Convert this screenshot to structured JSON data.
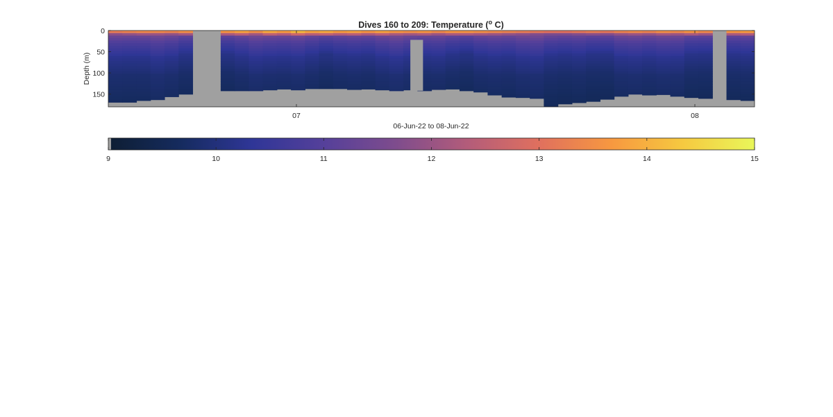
{
  "chart_data": {
    "type": "heatmap",
    "title": "Dives 160 to 209: Temperature (",
    "title_superscript": "o",
    "title_suffix": " C)",
    "xlabel": "06-Jun-22 to 08-Jun-22",
    "ylabel": "Depth (m)",
    "y_reversed": true,
    "ylim": [
      0,
      180
    ],
    "yticks": [
      0,
      50,
      100,
      150
    ],
    "xtick_labels": [
      "07",
      "08"
    ],
    "dives": [
      160,
      209
    ],
    "no_data_color": "#a0a0a0",
    "colorbar": {
      "min": 9,
      "max": 15,
      "ticks": [
        "9",
        "10",
        "11",
        "12",
        "13",
        "14",
        "15"
      ],
      "colors": [
        "#0e1e33",
        "#152b5e",
        "#2f3697",
        "#55409a",
        "#7e4c8d",
        "#b35c7a",
        "#e0705e",
        "#f79840",
        "#f6c940",
        "#e9f75a"
      ]
    },
    "profiles": [
      {
        "col": 0,
        "bottom": 169,
        "surface": 13.2
      },
      {
        "col": 1,
        "bottom": 169,
        "surface": 13.3
      },
      {
        "col": 2,
        "bottom": 165,
        "surface": 13.4
      },
      {
        "col": 3,
        "bottom": 163,
        "surface": 13.4
      },
      {
        "col": 4,
        "bottom": 156,
        "surface": 13.3
      },
      {
        "col": 5,
        "bottom": 150,
        "surface": 13.5
      },
      {
        "col": 6,
        "bottom": null
      },
      {
        "col": 7,
        "bottom": null
      },
      {
        "col": 8,
        "bottom": 142,
        "surface": 13.6
      },
      {
        "col": 9,
        "bottom": 142,
        "surface": 13.8
      },
      {
        "col": 10,
        "bottom": 142,
        "surface": 13.5
      },
      {
        "col": 11,
        "bottom": 140,
        "surface": 13.9
      },
      {
        "col": 12,
        "bottom": 138,
        "surface": 13.7
      },
      {
        "col": 13,
        "bottom": 140,
        "surface": 14.1
      },
      {
        "col": 14,
        "bottom": 137,
        "surface": 13.8
      },
      {
        "col": 15,
        "bottom": 137,
        "surface": 13.9
      },
      {
        "col": 16,
        "bottom": 137,
        "surface": 13.7
      },
      {
        "col": 17,
        "bottom": 139,
        "surface": 13.8
      },
      {
        "col": 18,
        "bottom": 138,
        "surface": 13.6
      },
      {
        "col": 19,
        "bottom": 140,
        "surface": 13.8
      },
      {
        "col": 20,
        "bottom": 142,
        "surface": 13.6
      },
      {
        "col": 21,
        "bottom": 140,
        "surface": 13.5
      },
      {
        "col": 22,
        "bottom": 142,
        "surface": 13.6
      },
      {
        "col": 23,
        "bottom": 139,
        "surface": 13.4
      },
      {
        "col": 24,
        "bottom": 138,
        "surface": 13.6
      },
      {
        "col": 25,
        "bottom": 142,
        "surface": 13.6
      },
      {
        "col": 26,
        "bottom": 145,
        "surface": 13.5
      },
      {
        "col": 27,
        "bottom": 152,
        "surface": 13.4
      },
      {
        "col": 28,
        "bottom": 157,
        "surface": 13.3
      },
      {
        "col": 29,
        "bottom": 158,
        "surface": 13.2
      },
      {
        "col": 30,
        "bottom": 160,
        "surface": 13.1
      },
      {
        "col": 31,
        "bottom": 180,
        "surface": 13.0
      },
      {
        "col": 32,
        "bottom": 173,
        "surface": 13.0
      },
      {
        "col": 33,
        "bottom": 170,
        "surface": 13.1
      },
      {
        "col": 34,
        "bottom": 167,
        "surface": 13.2
      },
      {
        "col": 35,
        "bottom": 162,
        "surface": 13.1
      },
      {
        "col": 36,
        "bottom": 155,
        "surface": 13.3
      },
      {
        "col": 37,
        "bottom": 150,
        "surface": 13.4
      },
      {
        "col": 38,
        "bottom": 152,
        "surface": 13.3
      },
      {
        "col": 39,
        "bottom": 151,
        "surface": 13.5
      },
      {
        "col": 40,
        "bottom": 155,
        "surface": 13.4
      },
      {
        "col": 41,
        "bottom": 158,
        "surface": 13.6
      },
      {
        "col": 42,
        "bottom": 160,
        "surface": 13.4
      },
      {
        "col": 43,
        "bottom": null
      },
      {
        "col": 44,
        "bottom": 163,
        "surface": 13.6
      },
      {
        "col": 45,
        "bottom": 165,
        "surface": 13.7
      }
    ],
    "gap_partial": {
      "col": 21.5,
      "top": 22,
      "bottom": 142
    }
  }
}
